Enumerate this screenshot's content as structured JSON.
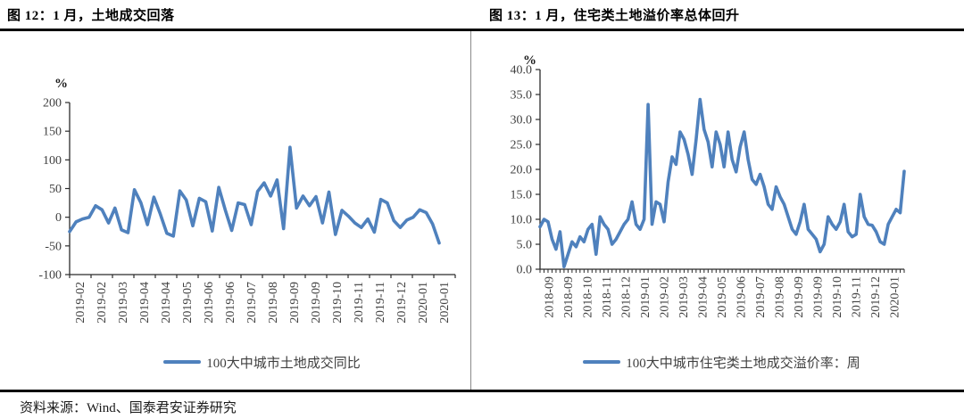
{
  "page": {
    "source_label": "资料来源：Wind、国泰君安证券研究"
  },
  "chart_data": [
    {
      "type": "line",
      "title": "图 12：1 月，土地成交回落",
      "unit_label": "%",
      "ylabel": "%",
      "ylim": [
        -100,
        200
      ],
      "grid": false,
      "legend_position": "bottom",
      "ytick_values": [
        200,
        150,
        100,
        50,
        0,
        -50,
        -100
      ],
      "ytick_labels": [
        "200",
        "150",
        "100",
        "50",
        "0",
        "-50",
        "-100"
      ],
      "xtick_labels": [
        "2019-02",
        "2019-02",
        "2019-03",
        "2019-04",
        "2019-04",
        "2019-05",
        "2019-06",
        "2019-06",
        "2019-07",
        "2019-08",
        "2019-09",
        "2019-09",
        "2019-10",
        "2019-11",
        "2019-11",
        "2019-12",
        "2020-01",
        "2020-01"
      ],
      "series": [
        {
          "name": "100大中城市土地成交同比",
          "color": "#4f81bd",
          "values": [
            -25,
            -8,
            -3,
            0,
            20,
            13,
            -10,
            16,
            -22,
            -27,
            48,
            25,
            -13,
            35,
            5,
            -28,
            -33,
            46,
            30,
            -15,
            33,
            27,
            -24,
            52,
            13,
            -23,
            25,
            22,
            -13,
            45,
            60,
            37,
            65,
            -20,
            122,
            16,
            37,
            20,
            36,
            -10,
            44,
            -30,
            12,
            2,
            -10,
            -18,
            -3,
            -26,
            31,
            25,
            -6,
            -18,
            -5,
            0,
            13,
            8,
            -12,
            -45
          ]
        }
      ]
    },
    {
      "type": "line",
      "title": "图 13：1 月，住宅类土地溢价率总体回升",
      "unit_label": "%",
      "ylabel": "%",
      "ylim": [
        0,
        40
      ],
      "grid": false,
      "legend_position": "bottom",
      "ytick_values": [
        40,
        35,
        30,
        25,
        20,
        15,
        10,
        5,
        0
      ],
      "ytick_labels": [
        "40.0",
        "35.0",
        "30.0",
        "25.0",
        "20.0",
        "15.0",
        "10.0",
        "5.0",
        "0.0"
      ],
      "xtick_labels": [
        "2018-09",
        "2018-09",
        "2018-10",
        "2018-11",
        "2018-12",
        "2019-01",
        "2019-02",
        "2019-03",
        "2019-04",
        "2019-05",
        "2019-06",
        "2019-07",
        "2019-08",
        "2019-09",
        "2019-09",
        "2019-10",
        "2019-11",
        "2019-12",
        "2020-01"
      ],
      "series": [
        {
          "name": "100大中城市住宅类土地成交溢价率：周",
          "color": "#4f81bd",
          "values": [
            8.5,
            10,
            9.5,
            6,
            4,
            7.5,
            0.5,
            3,
            5.5,
            4.5,
            6.5,
            5.5,
            8,
            9,
            3,
            10.5,
            9,
            8,
            5,
            6,
            7.5,
            9,
            10,
            13.5,
            9,
            8,
            10,
            33,
            9,
            13.5,
            13,
            9.5,
            17.5,
            22.5,
            21,
            27.5,
            26,
            23,
            19,
            26,
            34,
            28,
            25.5,
            20.5,
            27.5,
            25,
            20.5,
            27.5,
            22,
            19.5,
            24.5,
            27.5,
            22,
            18,
            17,
            19,
            16.5,
            13,
            12,
            16.5,
            14.5,
            13,
            10.5,
            8,
            7,
            9.5,
            13,
            8,
            7,
            6,
            3.5,
            5,
            10.5,
            9,
            8,
            9.5,
            13,
            7.5,
            6.5,
            7,
            15,
            10.5,
            9,
            8.8,
            7.5,
            5.5,
            5,
            9,
            10.5,
            12,
            11.3,
            19.6
          ]
        }
      ]
    }
  ]
}
